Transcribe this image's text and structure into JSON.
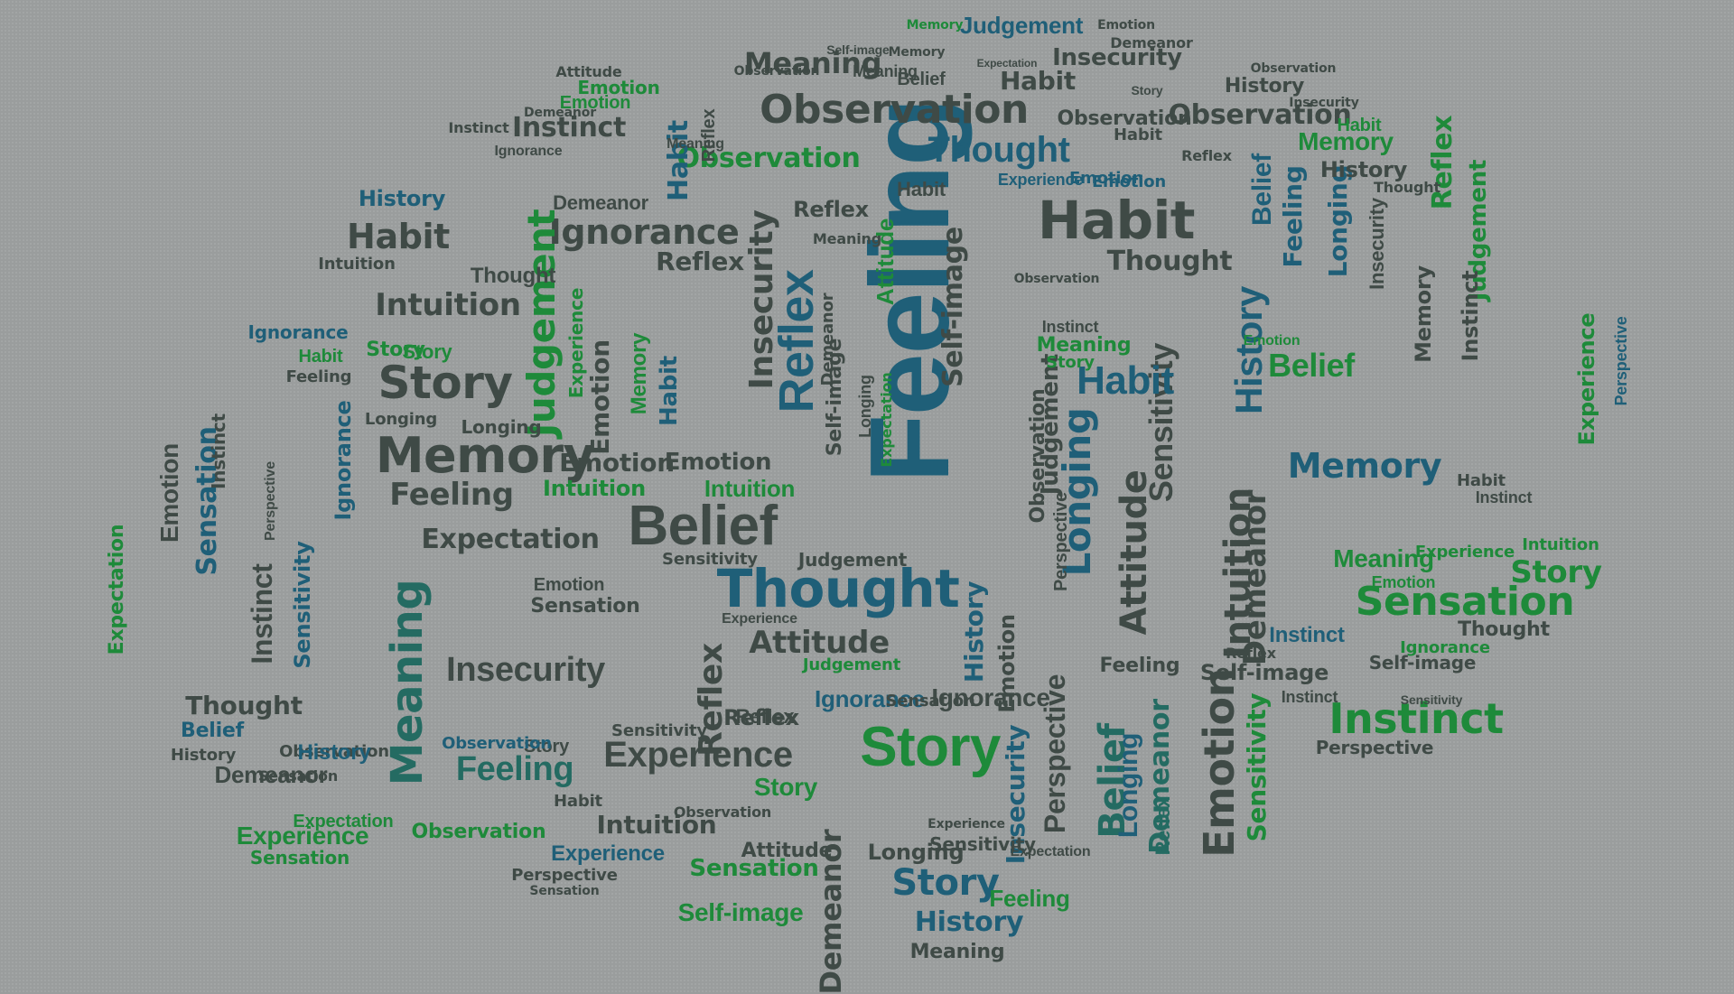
{
  "palette": {
    "background": "#9a9d9d",
    "dark": "#3f4a46",
    "green": "#1e8a3a",
    "blue": "#1f5f78",
    "teal": "#246b62",
    "magenta": "#8a3060",
    "olive": "#4a5a2a"
  },
  "words": [
    {
      "text": "Feeling"
    },
    {
      "text": "Observation"
    },
    {
      "text": "Thought"
    },
    {
      "text": "Belief"
    },
    {
      "text": "Memory"
    },
    {
      "text": "Habit"
    },
    {
      "text": "Story"
    },
    {
      "text": "Sensation"
    },
    {
      "text": "Instinct"
    },
    {
      "text": "Experience"
    },
    {
      "text": "Ignorance"
    },
    {
      "text": "Intuition"
    },
    {
      "text": "Reflex"
    },
    {
      "text": "Meaning"
    },
    {
      "text": "Judgement"
    },
    {
      "text": "Insecurity"
    },
    {
      "text": "Expectation"
    },
    {
      "text": "Attitude"
    },
    {
      "text": "History"
    },
    {
      "text": "Emotion"
    },
    {
      "text": "Longing"
    },
    {
      "text": "Sensitivity"
    },
    {
      "text": "Self-image"
    },
    {
      "text": "Demeanor"
    },
    {
      "text": "Perspective"
    }
  ]
}
